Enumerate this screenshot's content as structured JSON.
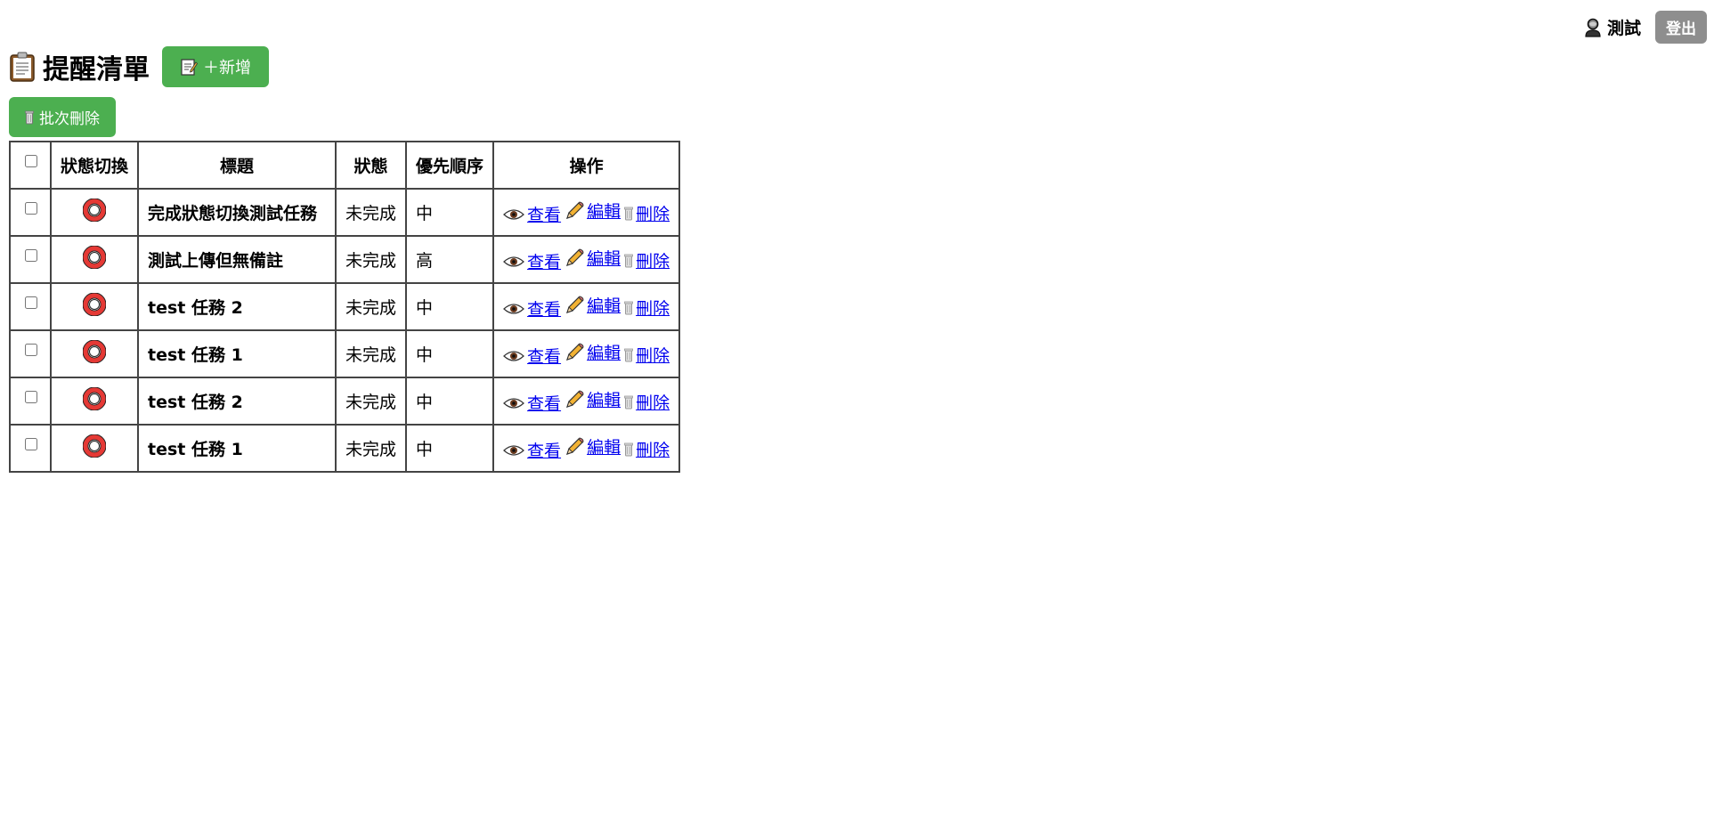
{
  "header": {
    "user_name": "測試",
    "logout_label": "登出",
    "title": "提醒清單",
    "add_label": "＋新增"
  },
  "toolbar": {
    "batch_delete_label": "批次刪除"
  },
  "table": {
    "columns": [
      "狀態切換",
      "標題",
      "狀態",
      "優先順序",
      "操作"
    ],
    "actions": {
      "view": "查看",
      "edit": "編輯",
      "delete": "刪除"
    },
    "rows": [
      {
        "title": "完成狀態切換測試任務",
        "status": "未完成",
        "priority": "中"
      },
      {
        "title": "測試上傳但無備註",
        "status": "未完成",
        "priority": "高"
      },
      {
        "title": "test 任務 2",
        "status": "未完成",
        "priority": "中"
      },
      {
        "title": "test 任務 1",
        "status": "未完成",
        "priority": "中"
      },
      {
        "title": "test 任務 2",
        "status": "未完成",
        "priority": "中"
      },
      {
        "title": "test 任務 1",
        "status": "未完成",
        "priority": "中"
      }
    ]
  },
  "colors": {
    "accent_green": "#4caf50",
    "logout_gray": "#8e8e8e",
    "toggle_ring": "#e53935",
    "link_blue": "#0000ee"
  },
  "icons": {
    "user": "user-silhouette-icon",
    "title": "clipboard-icon",
    "add": "memo-icon",
    "batch_delete": "trash-icon",
    "toggle": "hollow-red-circle-icon",
    "view": "eye-icon",
    "edit": "pencil-icon",
    "delete": "trash-icon"
  }
}
